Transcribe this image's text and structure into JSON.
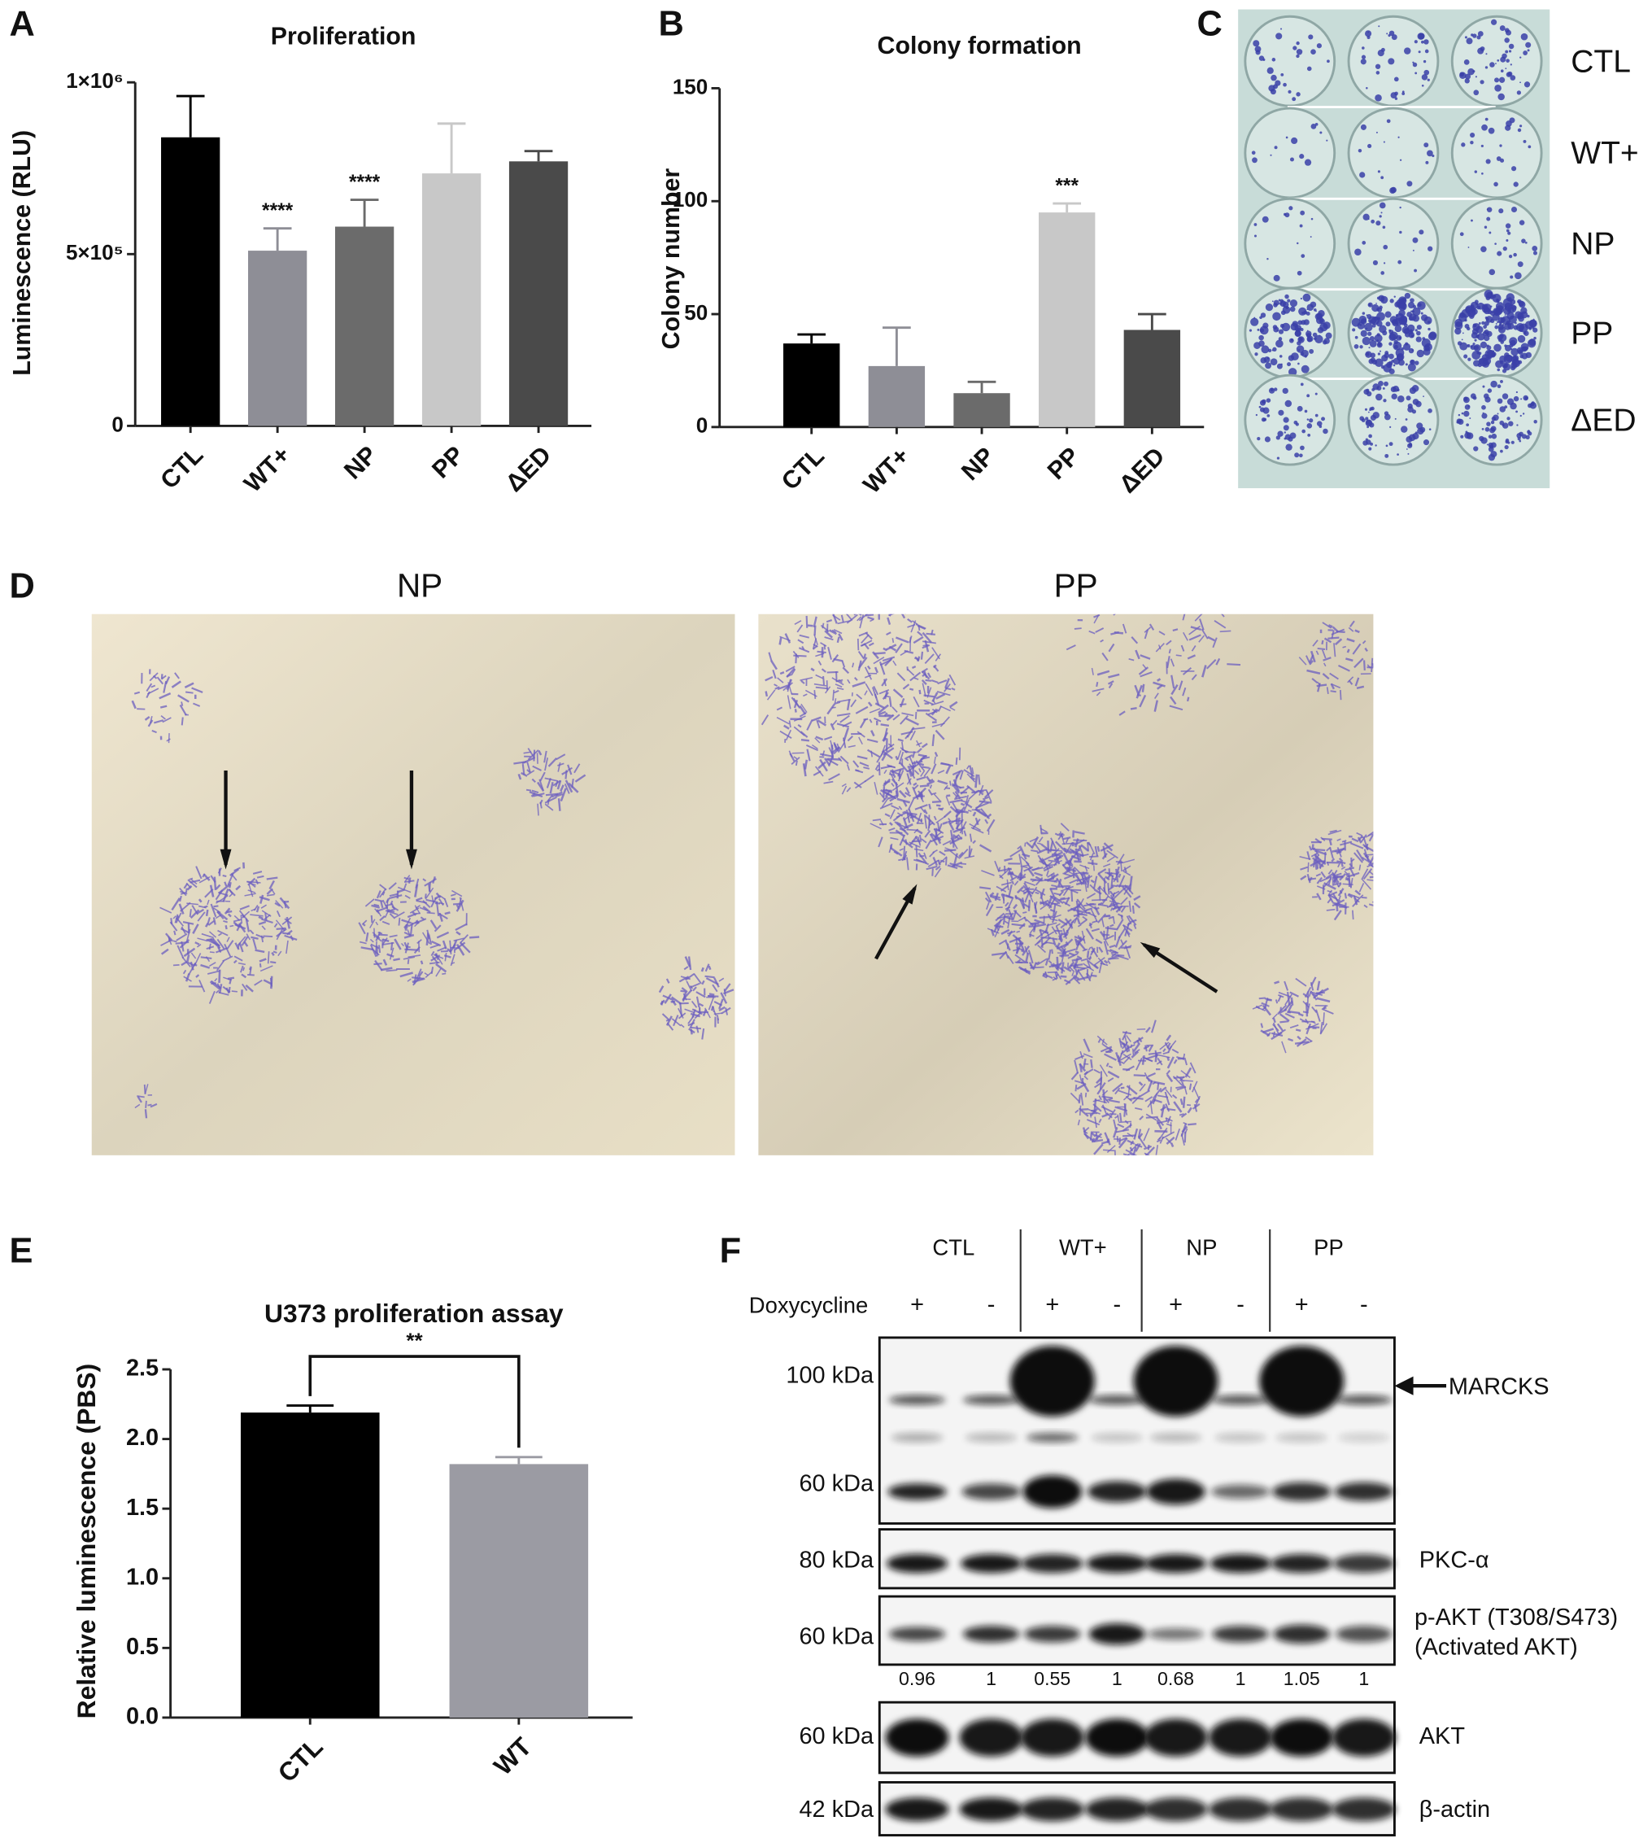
{
  "chart_data": [
    {
      "type": "bar",
      "panel_label": "A",
      "title": "Proliferation",
      "y_label": "Luminescence (RLU)",
      "categories": [
        "CTL",
        "WT+",
        "NP",
        "PP",
        "ΔED"
      ],
      "values": [
        840000,
        510000,
        580000,
        735000,
        770000
      ],
      "errors": [
        120000,
        65000,
        78000,
        145000,
        30000
      ],
      "annotations": [
        null,
        "****",
        "****",
        null,
        null
      ],
      "colors": [
        "#000000",
        "#8e8e96",
        "#6b6b6b",
        "#c8c8c8",
        "#4a4a4a"
      ],
      "ylim": [
        0,
        1000000
      ],
      "yticks": [
        0,
        {
          "value": 500000,
          "label": "5×10⁵"
        },
        {
          "value": 1000000,
          "label": "1×10⁶"
        }
      ]
    },
    {
      "type": "bar",
      "panel_label": "B",
      "title": "Colony formation",
      "y_label": "Colony number",
      "categories": [
        "CTL",
        "WT+",
        "NP",
        "PP",
        "ΔED"
      ],
      "values": [
        37,
        27,
        15,
        95,
        43
      ],
      "errors": [
        4,
        17,
        5,
        4,
        7
      ],
      "annotations": [
        null,
        null,
        null,
        "***",
        null
      ],
      "colors": [
        "#000000",
        "#8e8e96",
        "#6b6b6b",
        "#c8c8c8",
        "#4a4a4a"
      ],
      "ylim": [
        0,
        150
      ],
      "yticks": [
        0,
        50,
        100,
        150
      ]
    },
    {
      "type": "bar",
      "panel_label": "E",
      "title": "U373 proliferation assay",
      "y_label": "Relative luminescence (PBS)",
      "categories": [
        "CTL",
        "WT"
      ],
      "values": [
        2.19,
        1.82
      ],
      "errors": [
        0.05,
        0.05
      ],
      "bracket_label": "**",
      "colors": [
        "#000000",
        "#9b9ba3"
      ],
      "ylim": [
        0,
        2.5
      ],
      "yticks": [
        {
          "value": 0,
          "label": "0.0"
        },
        0.5,
        {
          "value": 1,
          "label": "1.0"
        },
        1.5,
        {
          "value": 2,
          "label": "2.0"
        },
        2.5
      ]
    }
  ],
  "panel_c": {
    "label": "C",
    "rows": [
      "CTL",
      "WT+",
      "NP",
      "PP",
      "ΔED"
    ]
  },
  "panel_d": {
    "label": "D",
    "images": [
      "NP",
      "PP"
    ]
  },
  "panel_f": {
    "label": "F",
    "groups": [
      "CTL",
      "WT+",
      "NP",
      "PP"
    ],
    "treatment": "Doxycycline",
    "signs": [
      "+",
      "-",
      "+",
      "-",
      "+",
      "-",
      "+",
      "-"
    ],
    "markers": [
      "100 kDa",
      "60 kDa",
      "80 kDa",
      "60 kDa",
      "60 kDa",
      "42 kDa"
    ],
    "targets": [
      "MARCKS",
      "PKC-α",
      "p-AKT (T308/S473)",
      "(Activated AKT)",
      "AKT",
      "β-actin"
    ],
    "quantification": [
      0.96,
      1,
      0.55,
      1,
      0.68,
      1,
      1.05,
      1
    ]
  }
}
